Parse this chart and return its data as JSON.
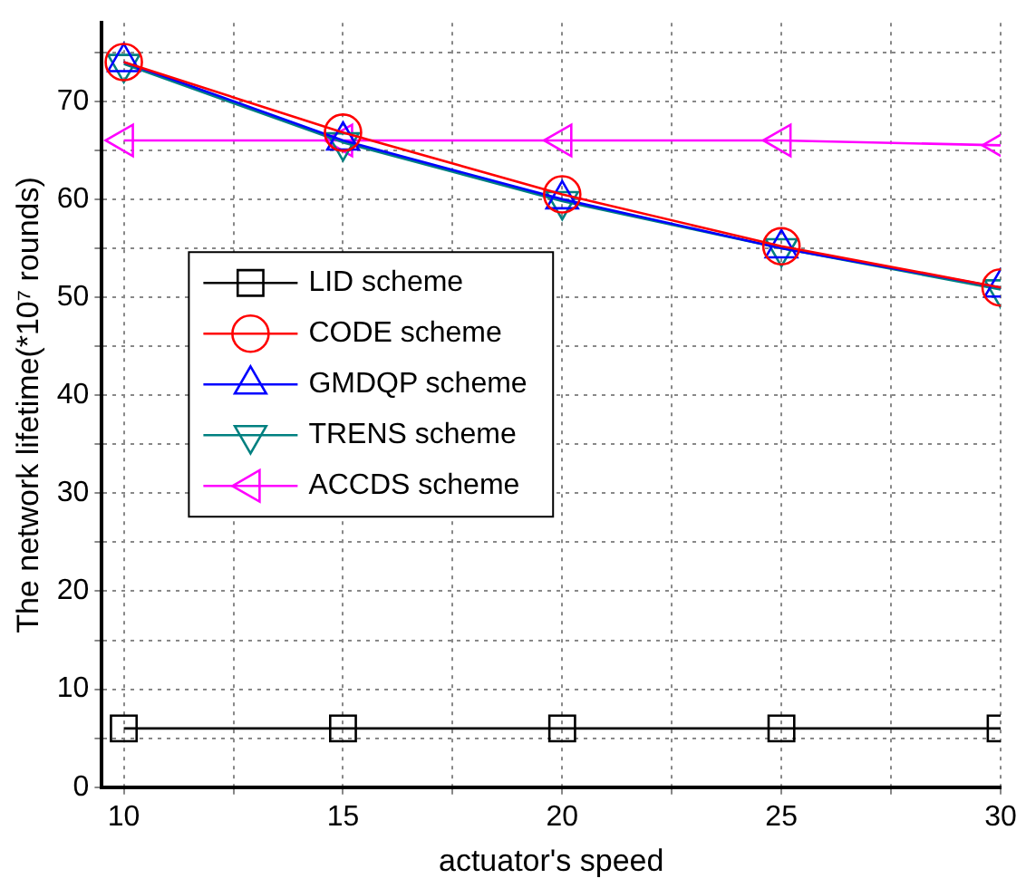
{
  "chart_data": {
    "type": "line",
    "xlabel": "actuator's speed",
    "ylabel": "The network lifetime(*10⁷ rounds)",
    "x": [
      10,
      15,
      20,
      25,
      30
    ],
    "series": [
      {
        "name": "LID scheme",
        "color": "#000000",
        "marker": "square",
        "values": [
          6,
          6,
          6,
          6,
          6
        ]
      },
      {
        "name": "CODE scheme",
        "color": "#ff0000",
        "marker": "circle",
        "values": [
          74,
          66.8,
          60.5,
          55.2,
          51
        ]
      },
      {
        "name": "GMDQP scheme",
        "color": "#0000ff",
        "marker": "triangle",
        "values": [
          74,
          66,
          60,
          55,
          51
        ]
      },
      {
        "name": "TRENS scheme",
        "color": "#008080",
        "marker": "triangle",
        "values": [
          73.8,
          65.8,
          59.8,
          55,
          50.8
        ]
      },
      {
        "name": "ACCDS scheme",
        "color": "#ff00ff",
        "marker": "triangle",
        "values": [
          66,
          66,
          66,
          66,
          65.5
        ]
      }
    ],
    "xlim": [
      9.5,
      30
    ],
    "xticks": [
      10,
      {
        "value": 12.5,
        "label": null
      },
      15,
      {
        "value": 17.5,
        "label": null
      },
      20,
      {
        "value": 22.5,
        "label": null
      },
      25,
      {
        "value": 27.5,
        "label": null
      },
      30
    ],
    "ylim": [
      0,
      78
    ],
    "yticks": [
      0,
      {
        "value": 5,
        "label": null
      },
      10,
      {
        "value": 15,
        "label": null
      },
      20,
      {
        "value": 25,
        "label": null
      },
      30,
      {
        "value": 35,
        "label": null
      },
      40,
      {
        "value": 45,
        "label": null
      },
      50,
      {
        "value": 55,
        "label": null
      },
      60,
      {
        "value": 65,
        "label": null
      },
      70,
      {
        "value": 75,
        "label": null
      }
    ],
    "grid": true,
    "legend": "left",
    "line_style": "solid"
  }
}
